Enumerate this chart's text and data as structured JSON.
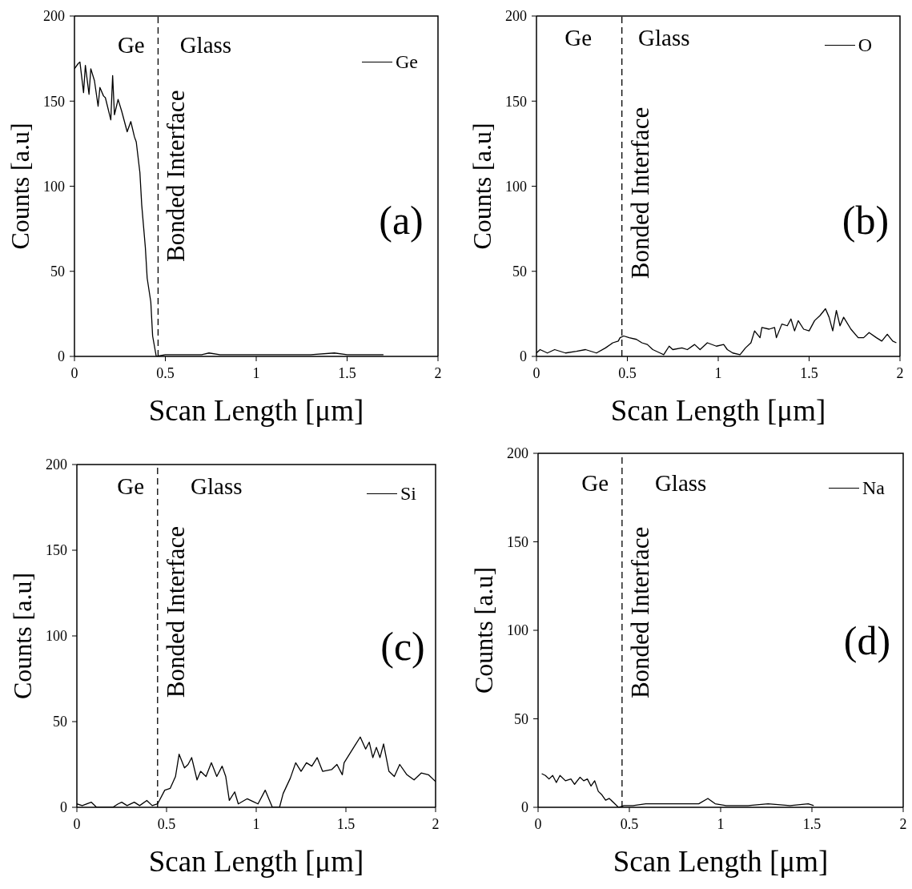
{
  "chart_data": [
    {
      "type": "line",
      "xlabel": "Scan Length [μm]",
      "ylabel": "Counts [a.u]",
      "annotations": [
        "Ge",
        "Glass",
        "(a)"
      ],
      "xlim": [
        0,
        2
      ],
      "xticks": [
        0,
        0.5,
        1,
        1.5,
        2
      ],
      "ylim": [
        0,
        200
      ],
      "yticks": [
        0,
        50,
        100,
        150,
        200
      ],
      "legend": "top right",
      "ref_lines": [
        {
          "axis": "x",
          "value": 0.46,
          "label": "Bonded Interface",
          "color": "#000000",
          "line_style": "dashed"
        }
      ],
      "x": [
        0,
        0.02,
        0.03,
        0.05,
        0.06,
        0.08,
        0.09,
        0.11,
        0.13,
        0.14,
        0.16,
        0.17,
        0.2,
        0.21,
        0.22,
        0.24,
        0.26,
        0.29,
        0.31,
        0.33,
        0.34,
        0.36,
        0.37,
        0.39,
        0.4,
        0.42,
        0.43,
        0.45,
        0.5,
        0.55,
        0.6,
        0.7,
        0.74,
        0.8,
        0.9,
        1,
        1.1,
        1.2,
        1.3,
        1.43,
        1.5,
        1.6,
        1.7
      ],
      "series": [
        {
          "name": "Ge",
          "color": "#000000",
          "values": [
            169,
            172,
            173,
            155,
            171,
            154,
            169,
            162,
            147,
            158,
            153,
            152,
            139,
            165,
            142,
            151,
            144,
            132,
            138,
            129,
            126,
            108,
            89,
            64,
            46,
            32,
            12,
            0,
            1,
            1,
            1,
            1,
            2,
            1,
            1,
            1,
            1,
            1,
            1,
            2,
            1,
            1,
            1
          ]
        }
      ]
    },
    {
      "type": "line",
      "xlabel": "Scan Length [μm]",
      "ylabel": "Counts [a.u]",
      "annotations": [
        "Ge",
        "Glass",
        "(b)"
      ],
      "xlim": [
        0,
        2
      ],
      "xticks": [
        0,
        0.5,
        1,
        1.5,
        2
      ],
      "ylim": [
        0,
        200
      ],
      "yticks": [
        0,
        50,
        100,
        150,
        200
      ],
      "legend": "top right",
      "ref_lines": [
        {
          "axis": "x",
          "value": 0.47,
          "label": "Bonded Interface",
          "color": "#000000",
          "line_style": "dashed"
        }
      ],
      "x": [
        0,
        0.02,
        0.06,
        0.1,
        0.16,
        0.22,
        0.27,
        0.33,
        0.38,
        0.42,
        0.45,
        0.46,
        0.48,
        0.51,
        0.55,
        0.58,
        0.61,
        0.64,
        0.68,
        0.7,
        0.73,
        0.75,
        0.8,
        0.83,
        0.87,
        0.9,
        0.94,
        0.99,
        1.03,
        1.05,
        1.08,
        1.12,
        1.15,
        1.18,
        1.2,
        1.23,
        1.24,
        1.28,
        1.31,
        1.32,
        1.35,
        1.38,
        1.4,
        1.42,
        1.44,
        1.47,
        1.5,
        1.53,
        1.56,
        1.59,
        1.61,
        1.63,
        1.65,
        1.67,
        1.69,
        1.73,
        1.77,
        1.8,
        1.83,
        1.87,
        1.9,
        1.93,
        1.96,
        1.98
      ],
      "series": [
        {
          "name": "O",
          "color": "#000000",
          "values": [
            2,
            4,
            2,
            4,
            2,
            3,
            4,
            2,
            5,
            8,
            9,
            11,
            12,
            11,
            10,
            8,
            7,
            4,
            2,
            1,
            6,
            4,
            5,
            4,
            7,
            4,
            8,
            6,
            7,
            4,
            2,
            1,
            5,
            8,
            15,
            11,
            17,
            16,
            17,
            11,
            19,
            18,
            22,
            15,
            21,
            16,
            15,
            21,
            24,
            28,
            23,
            15,
            27,
            18,
            23,
            16,
            11,
            11,
            14,
            11,
            9,
            13,
            9,
            8
          ]
        }
      ]
    },
    {
      "type": "line",
      "xlabel": "Scan Length [μm]",
      "ylabel": "Counts [a.u]",
      "annotations": [
        "Ge",
        "Glass",
        "(c)"
      ],
      "xlim": [
        0,
        2
      ],
      "xticks": [
        0,
        0.5,
        1,
        1.5,
        2
      ],
      "ylim": [
        0,
        200
      ],
      "yticks": [
        0,
        50,
        100,
        150,
        200
      ],
      "legend": "top right",
      "ref_lines": [
        {
          "axis": "x",
          "value": 0.45,
          "label": "Bonded Interface",
          "color": "#000000",
          "line_style": "dashed"
        }
      ],
      "x": [
        0,
        0.03,
        0.08,
        0.11,
        0.2,
        0.23,
        0.25,
        0.28,
        0.32,
        0.35,
        0.39,
        0.42,
        0.45,
        0.46,
        0.49,
        0.52,
        0.55,
        0.57,
        0.6,
        0.62,
        0.64,
        0.67,
        0.69,
        0.72,
        0.75,
        0.78,
        0.81,
        0.83,
        0.85,
        0.88,
        0.9,
        0.95,
        0.99,
        1.01,
        1.05,
        1.09,
        1.13,
        1.15,
        1.19,
        1.22,
        1.25,
        1.28,
        1.31,
        1.34,
        1.37,
        1.42,
        1.45,
        1.48,
        1.49,
        1.52,
        1.55,
        1.58,
        1.61,
        1.63,
        1.65,
        1.67,
        1.69,
        1.71,
        1.74,
        1.77,
        1.8,
        1.84,
        1.88,
        1.92,
        1.96,
        2
      ],
      "series": [
        {
          "name": "Si",
          "color": "#000000",
          "values": [
            2,
            1,
            3,
            0,
            0,
            2,
            3,
            1,
            3,
            1,
            4,
            1,
            2,
            4,
            10,
            11,
            18,
            31,
            23,
            25,
            29,
            16,
            21,
            18,
            26,
            18,
            24,
            18,
            4,
            9,
            2,
            5,
            3,
            2,
            10,
            0,
            0,
            8,
            17,
            26,
            21,
            26,
            24,
            29,
            21,
            22,
            25,
            19,
            26,
            31,
            36,
            41,
            34,
            38,
            29,
            35,
            29,
            37,
            21,
            18,
            25,
            19,
            16,
            20,
            19,
            15
          ]
        }
      ]
    },
    {
      "type": "line",
      "xlabel": "Scan Length [μm]",
      "ylabel": "Counts [a.u]",
      "annotations": [
        "Ge",
        "Glass",
        "(d)"
      ],
      "xlim": [
        0,
        2
      ],
      "xticks": [
        0,
        0.5,
        1,
        1.5,
        2
      ],
      "ylim": [
        0,
        200
      ],
      "yticks": [
        0,
        50,
        100,
        150,
        200
      ],
      "legend": "top right",
      "ref_lines": [
        {
          "axis": "x",
          "value": 0.46,
          "label": "Bonded Interface",
          "color": "#000000",
          "line_style": "dashed"
        }
      ],
      "x": [
        0.02,
        0.04,
        0.06,
        0.08,
        0.1,
        0.12,
        0.15,
        0.18,
        0.2,
        0.23,
        0.25,
        0.27,
        0.29,
        0.31,
        0.33,
        0.35,
        0.37,
        0.39,
        0.42,
        0.44,
        0.47,
        0.52,
        0.59,
        0.66,
        0.74,
        0.81,
        0.88,
        0.93,
        0.97,
        1.03,
        1.15,
        1.26,
        1.38,
        1.48,
        1.51
      ],
      "series": [
        {
          "name": "Na",
          "color": "#000000",
          "values": [
            19,
            18,
            16,
            18,
            14,
            18,
            15,
            16,
            13,
            17,
            15,
            16,
            12,
            15,
            9,
            7,
            4,
            5,
            2,
            0,
            1,
            1,
            2,
            2,
            2,
            2,
            2,
            5,
            2,
            1,
            1,
            2,
            1,
            2,
            1
          ]
        }
      ]
    }
  ]
}
